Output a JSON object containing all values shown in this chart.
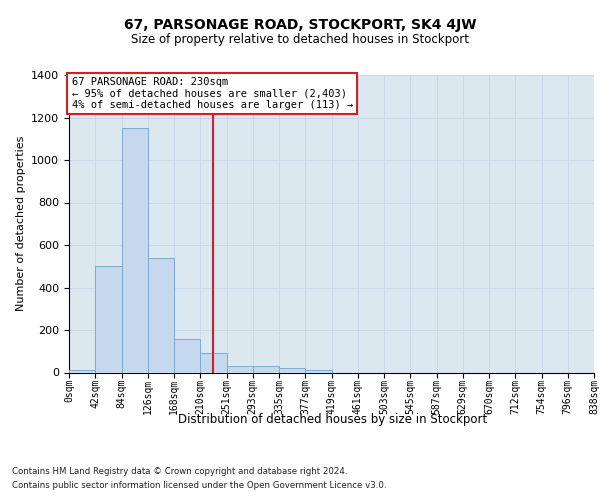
{
  "title": "67, PARSONAGE ROAD, STOCKPORT, SK4 4JW",
  "subtitle": "Size of property relative to detached houses in Stockport",
  "xlabel": "Distribution of detached houses by size in Stockport",
  "ylabel": "Number of detached properties",
  "bar_values": [
    10,
    500,
    1150,
    540,
    160,
    90,
    30,
    30,
    20,
    10,
    0,
    0,
    0,
    0,
    0,
    0,
    0,
    0,
    0,
    0
  ],
  "bar_labels": [
    "0sqm",
    "42sqm",
    "84sqm",
    "126sqm",
    "168sqm",
    "210sqm",
    "251sqm",
    "293sqm",
    "335sqm",
    "377sqm",
    "419sqm",
    "461sqm",
    "503sqm",
    "545sqm",
    "587sqm",
    "629sqm",
    "670sqm",
    "712sqm",
    "754sqm",
    "796sqm",
    "838sqm"
  ],
  "bar_color": "#c5d8ee",
  "bar_edge_color": "#7aabce",
  "grid_color": "#c8d8e8",
  "bg_color": "#dce8f0",
  "vline_x": 230,
  "vline_color": "#cc2222",
  "annotation_text": "67 PARSONAGE ROAD: 230sqm\n← 95% of detached houses are smaller (2,403)\n4% of semi-detached houses are larger (113) →",
  "annotation_box_edgecolor": "#cc2222",
  "ylim": [
    0,
    1400
  ],
  "yticks": [
    0,
    200,
    400,
    600,
    800,
    1000,
    1200,
    1400
  ],
  "footer_line1": "Contains HM Land Registry data © Crown copyright and database right 2024.",
  "footer_line2": "Contains public sector information licensed under the Open Government Licence v3.0.",
  "bin_width": 42,
  "n_bins": 20
}
